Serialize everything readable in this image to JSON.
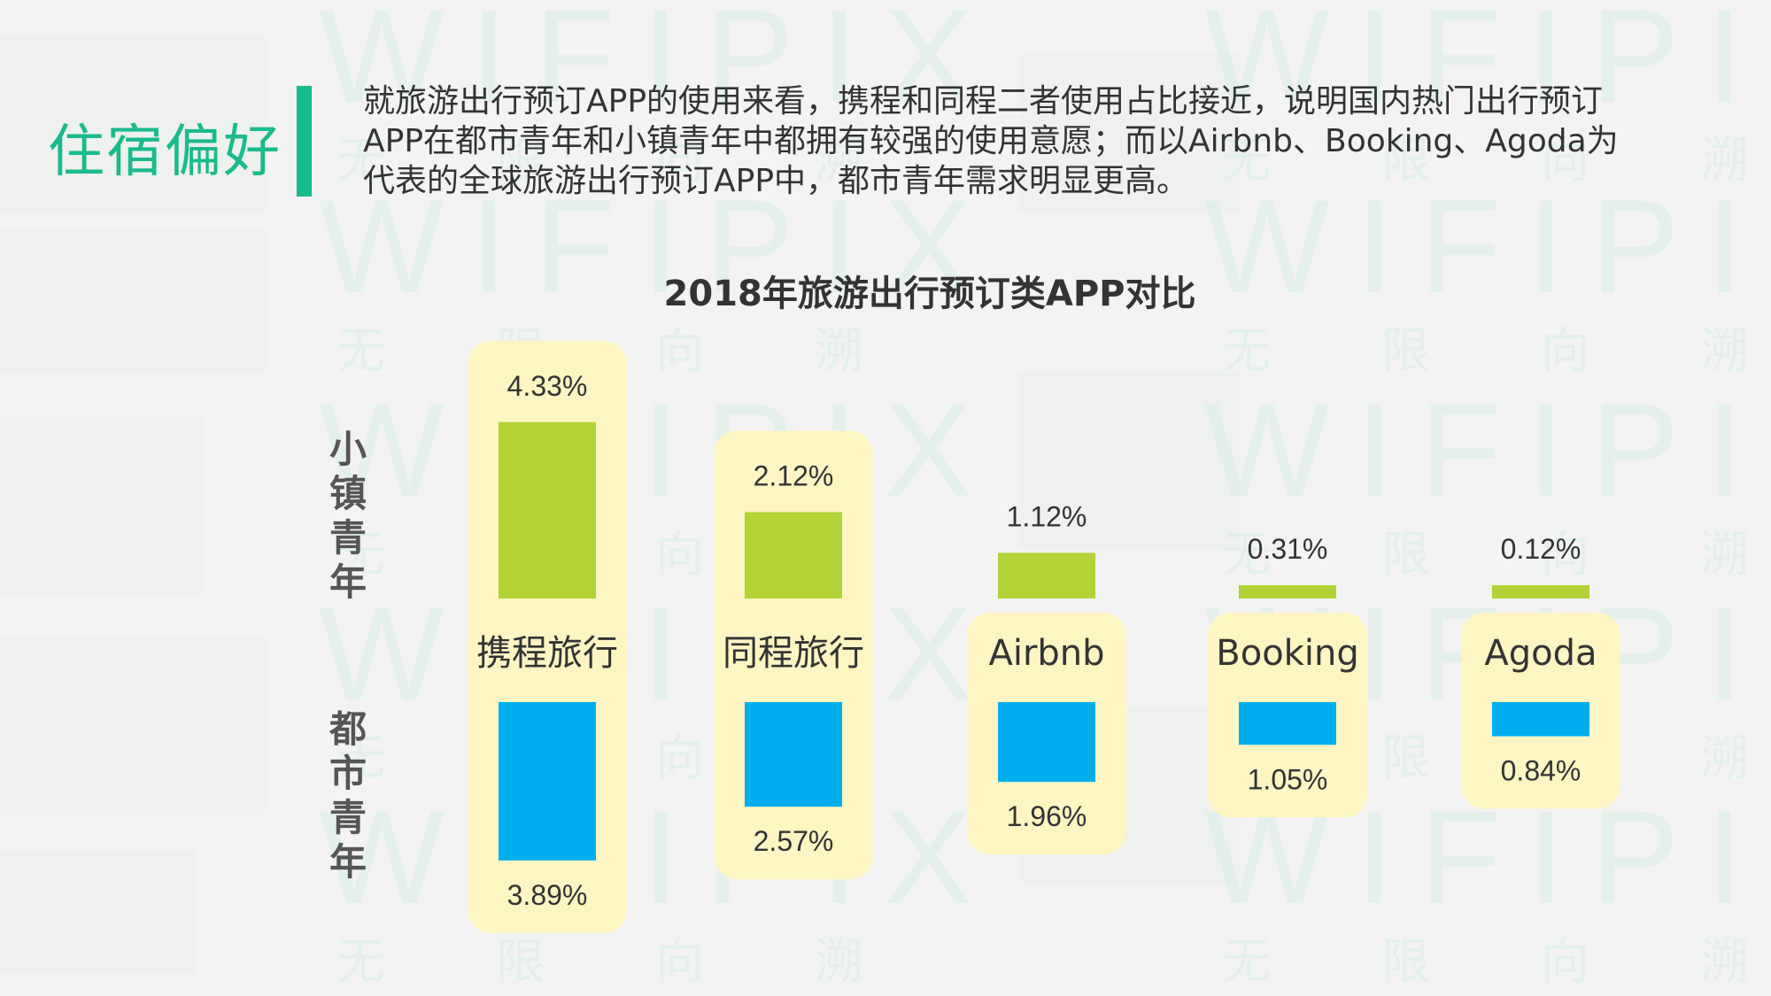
{
  "section_title": "住宿偏好",
  "summary_text": "就旅游出行预订APP的使用来看，携程和同程二者使用占比接近，说明国内热门出行预订APP在都市青年和小镇青年中都拥有较强的使用意愿；而以Airbnb、Booking、Agoda为代表的全球旅游出行预订APP中，都市青年需求明显更高。",
  "watermark": {
    "brand": "WIFIPIX",
    "chars": [
      "无",
      "限",
      "向",
      "溯"
    ]
  },
  "colors": {
    "accent": "#1aba8c",
    "small_town": "#b2d235",
    "urban": "#00aeef",
    "panel": "#fdf5c2",
    "text": "#333333"
  },
  "chart_data": {
    "type": "bar",
    "title": "2018年旅游出行预订类APP对比",
    "categories": [
      "携程旅行",
      "同程旅行",
      "Airbnb",
      "Booking",
      "Agoda"
    ],
    "series": [
      {
        "name": "小镇青年",
        "values": [
          4.33,
          2.12,
          1.12,
          0.31,
          0.12
        ],
        "labels": [
          "4.33%",
          "2.12%",
          "1.12%",
          "0.31%",
          "0.12%"
        ],
        "color": "#b2d235"
      },
      {
        "name": "都市青年",
        "values": [
          3.89,
          2.57,
          1.96,
          1.05,
          0.84
        ],
        "labels": [
          "3.89%",
          "2.57%",
          "1.96%",
          "1.05%",
          "0.84%"
        ],
        "color": "#00aeef"
      }
    ],
    "unit": "%",
    "legend_placement": "left",
    "grid": false
  }
}
